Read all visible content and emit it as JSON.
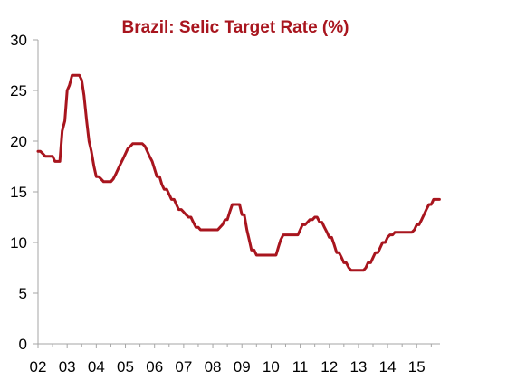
{
  "chart_data": {
    "type": "line",
    "title": "Brazil: Selic Target Rate (%)",
    "xlabel": "",
    "ylabel": "",
    "ylim": [
      0,
      30
    ],
    "xlim": [
      2002,
      2015.8
    ],
    "y_ticks": [
      0,
      5,
      10,
      15,
      20,
      25,
      30
    ],
    "x_ticks": [
      {
        "value": 2002,
        "label": "02"
      },
      {
        "value": 2003,
        "label": "03"
      },
      {
        "value": 2004,
        "label": "04"
      },
      {
        "value": 2005,
        "label": "05"
      },
      {
        "value": 2006,
        "label": "06"
      },
      {
        "value": 2007,
        "label": "07"
      },
      {
        "value": 2008,
        "label": "08"
      },
      {
        "value": 2009,
        "label": "09"
      },
      {
        "value": 2010,
        "label": "10"
      },
      {
        "value": 2011,
        "label": "11"
      },
      {
        "value": 2012,
        "label": "12"
      },
      {
        "value": 2013,
        "label": "13"
      },
      {
        "value": 2014,
        "label": "14"
      },
      {
        "value": 2015,
        "label": "15"
      }
    ],
    "grid": false,
    "legend": "none",
    "line_color": "#a8151e",
    "title_color": "#a8151e",
    "axis_color": "#a6a6a6",
    "series": [
      {
        "x": [
          2002.0,
          2002.08,
          2002.17,
          2002.25,
          2002.33,
          2002.42,
          2002.5,
          2002.58,
          2002.67,
          2002.75,
          2002.83,
          2002.92,
          2003.0,
          2003.08,
          2003.17,
          2003.25,
          2003.33,
          2003.42,
          2003.5,
          2003.58,
          2003.67,
          2003.75,
          2003.83,
          2003.92,
          2004.0,
          2004.08,
          2004.17,
          2004.25,
          2004.33,
          2004.42,
          2004.5,
          2004.58,
          2004.67,
          2004.75,
          2004.83,
          2004.92,
          2005.0,
          2005.08,
          2005.17,
          2005.25,
          2005.33,
          2005.42,
          2005.5,
          2005.58,
          2005.67,
          2005.75,
          2005.83,
          2005.92,
          2006.0,
          2006.08,
          2006.17,
          2006.25,
          2006.33,
          2006.42,
          2006.5,
          2006.58,
          2006.67,
          2006.75,
          2006.83,
          2006.92,
          2007.0,
          2007.08,
          2007.17,
          2007.25,
          2007.33,
          2007.42,
          2007.5,
          2007.58,
          2007.67,
          2007.75,
          2007.83,
          2007.92,
          2008.0,
          2008.17,
          2008.33,
          2008.42,
          2008.5,
          2008.58,
          2008.67,
          2008.75,
          2008.83,
          2008.92,
          2009.0,
          2009.08,
          2009.17,
          2009.25,
          2009.33,
          2009.42,
          2009.5,
          2009.58,
          2009.67,
          2009.83,
          2010.0,
          2010.17,
          2010.25,
          2010.33,
          2010.42,
          2010.5,
          2010.58,
          2010.75,
          2010.92,
          2011.0,
          2011.08,
          2011.17,
          2011.25,
          2011.33,
          2011.42,
          2011.5,
          2011.58,
          2011.67,
          2011.75,
          2011.83,
          2011.92,
          2012.0,
          2012.08,
          2012.17,
          2012.25,
          2012.33,
          2012.42,
          2012.5,
          2012.58,
          2012.67,
          2012.75,
          2012.83,
          2012.92,
          2013.0,
          2013.17,
          2013.25,
          2013.33,
          2013.42,
          2013.5,
          2013.58,
          2013.67,
          2013.75,
          2013.83,
          2013.92,
          2014.0,
          2014.08,
          2014.17,
          2014.25,
          2014.33,
          2014.42,
          2014.5,
          2014.67,
          2014.83,
          2014.92,
          2015.0,
          2015.08,
          2015.17,
          2015.25,
          2015.33,
          2015.42,
          2015.5,
          2015.58,
          2015.67,
          2015.78
        ],
        "values": [
          19.0,
          19.0,
          18.75,
          18.5,
          18.5,
          18.5,
          18.5,
          18.0,
          18.0,
          18.0,
          21.0,
          22.0,
          25.0,
          25.5,
          26.5,
          26.5,
          26.5,
          26.5,
          26.0,
          24.5,
          22.0,
          20.0,
          19.0,
          17.5,
          16.5,
          16.5,
          16.25,
          16.0,
          16.0,
          16.0,
          16.0,
          16.25,
          16.75,
          17.25,
          17.75,
          18.25,
          18.75,
          19.25,
          19.5,
          19.75,
          19.75,
          19.75,
          19.75,
          19.75,
          19.5,
          19.0,
          18.5,
          18.0,
          17.25,
          16.5,
          16.5,
          15.75,
          15.25,
          15.25,
          14.75,
          14.25,
          14.25,
          13.75,
          13.25,
          13.25,
          13.0,
          12.75,
          12.5,
          12.5,
          12.0,
          11.5,
          11.5,
          11.25,
          11.25,
          11.25,
          11.25,
          11.25,
          11.25,
          11.25,
          11.75,
          12.25,
          12.25,
          13.0,
          13.75,
          13.75,
          13.75,
          13.75,
          12.75,
          12.75,
          11.25,
          10.25,
          9.25,
          9.25,
          8.75,
          8.75,
          8.75,
          8.75,
          8.75,
          8.75,
          9.5,
          10.25,
          10.75,
          10.75,
          10.75,
          10.75,
          10.75,
          11.25,
          11.75,
          11.75,
          12.0,
          12.25,
          12.25,
          12.5,
          12.5,
          12.0,
          12.0,
          11.5,
          11.0,
          10.5,
          10.5,
          9.75,
          9.0,
          9.0,
          8.5,
          8.0,
          8.0,
          7.5,
          7.25,
          7.25,
          7.25,
          7.25,
          7.25,
          7.5,
          8.0,
          8.0,
          8.5,
          9.0,
          9.0,
          9.5,
          10.0,
          10.0,
          10.5,
          10.75,
          10.75,
          11.0,
          11.0,
          11.0,
          11.0,
          11.0,
          11.0,
          11.25,
          11.75,
          11.75,
          12.25,
          12.75,
          13.25,
          13.75,
          13.75,
          14.25,
          14.25,
          14.25
        ]
      }
    ]
  }
}
